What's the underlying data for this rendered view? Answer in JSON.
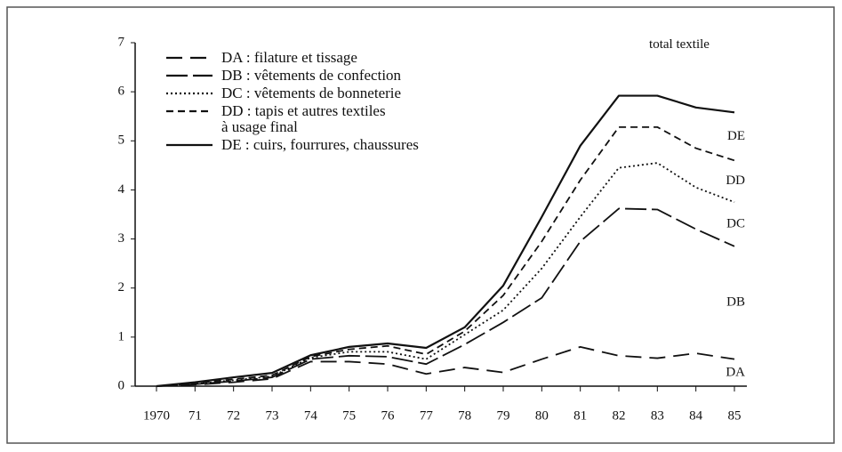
{
  "chart_data": {
    "type": "stacked-line",
    "categories": [
      "1970",
      "71",
      "72",
      "73",
      "74",
      "75",
      "76",
      "77",
      "78",
      "79",
      "80",
      "81",
      "82",
      "83",
      "84",
      "85"
    ],
    "ylim": [
      0,
      7
    ],
    "yticks": [
      0,
      1,
      2,
      3,
      4,
      5,
      6,
      7
    ],
    "total_label": "total textile",
    "series": [
      {
        "name": "DA : filature et tissage",
        "label": "DA",
        "color": "#111111",
        "dash": "18 9",
        "values": [
          0,
          0.03,
          0.08,
          0.15,
          0.5,
          0.5,
          0.45,
          0.25,
          0.38,
          0.28,
          0.55,
          0.8,
          0.62,
          0.57,
          0.67,
          0.55
        ]
      },
      {
        "name": "DB : vêtements de confection",
        "label": "DB",
        "color": "#111111",
        "dash": "24 6",
        "values": [
          0,
          0.01,
          0.02,
          0.03,
          0.05,
          0.12,
          0.15,
          0.2,
          0.47,
          1.02,
          1.25,
          2.15,
          3.0,
          3.03,
          2.53,
          2.3
        ]
      },
      {
        "name": "DC : vêtements de bonneterie",
        "label": "DC",
        "color": "#111111",
        "dash": "2 3",
        "values": [
          0,
          0.01,
          0.02,
          0.02,
          0.03,
          0.08,
          0.1,
          0.1,
          0.2,
          0.25,
          0.6,
          0.5,
          0.83,
          0.95,
          0.85,
          0.9
        ]
      },
      {
        "name": "DD : tapis et autres textiles\nà usage final",
        "label": "DD",
        "color": "#111111",
        "dash": "8 5",
        "values": [
          0,
          0.01,
          0.02,
          0.02,
          0.02,
          0.05,
          0.12,
          0.1,
          0.07,
          0.3,
          0.55,
          0.75,
          0.83,
          0.73,
          0.8,
          0.85
        ]
      },
      {
        "name": "DE : cuirs, fourrures, chaussures",
        "label": "DE",
        "color": "#111111",
        "dash": "none",
        "values": [
          0,
          0.02,
          0.04,
          0.05,
          0.03,
          0.05,
          0.05,
          0.13,
          0.08,
          0.2,
          0.5,
          0.7,
          0.64,
          0.64,
          0.83,
          0.98
        ]
      }
    ]
  }
}
